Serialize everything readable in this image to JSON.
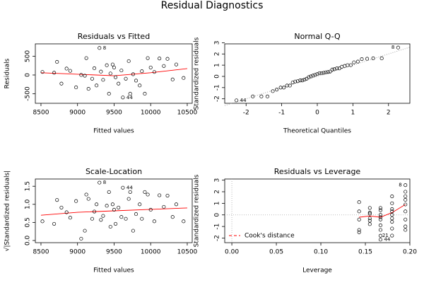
{
  "title": "Residual Diagnostics",
  "chart_data": [
    {
      "type": "scatter",
      "title": "Residuals vs Fitted",
      "x_label": "Fitted values",
      "y_label": "Residuals",
      "color": "#000000",
      "x": [
        8520,
        8680,
        8720,
        8780,
        8850,
        8900,
        8980,
        9050,
        9100,
        9120,
        9150,
        9200,
        9230,
        9260,
        9300,
        9320,
        9350,
        9400,
        9430,
        9450,
        9480,
        9500,
        9520,
        9560,
        9600,
        9620,
        9660,
        9700,
        9720,
        9760,
        9800,
        9850,
        9880,
        9920,
        9960,
        10000,
        10050,
        10120,
        10180,
        10230,
        10300,
        10350,
        10450
      ],
      "values": [
        80,
        60,
        350,
        -230,
        170,
        110,
        -330,
        0,
        -20,
        450,
        -370,
        -100,
        180,
        -280,
        720,
        90,
        -130,
        260,
        -500,
        40,
        280,
        200,
        -60,
        -230,
        120,
        -600,
        -100,
        370,
        -500,
        20,
        -150,
        -280,
        100,
        -500,
        450,
        200,
        80,
        440,
        240,
        430,
        -120,
        280,
        -80
      ],
      "xlim": [
        8423,
        10568
      ],
      "ylim": [
        -755,
        830
      ],
      "xticks": [
        8500,
        9000,
        9500,
        10000,
        10500
      ],
      "yticks": [
        -500,
        0,
        500
      ],
      "lines": [
        {
          "color": "#ff0000",
          "dash": "solid",
          "x": [
            8500,
            9000,
            9500,
            10000,
            10500
          ],
          "values": [
            60,
            20,
            -20,
            60,
            170
          ]
        }
      ],
      "annotations": [
        {
          "text": "8",
          "x": 9300,
          "y": 720
        },
        {
          "text": "44",
          "x": 9620,
          "y": -600
        }
      ]
    },
    {
      "type": "scatter",
      "title": "Normal Q-Q",
      "x_label": "Theoretical Quantiles",
      "y_label": "Standardized residuals",
      "color": "#000000",
      "x": [
        -2.27,
        -1.81,
        -1.57,
        -1.4,
        -1.25,
        -1.14,
        -1.03,
        -0.94,
        -0.85,
        -0.77,
        -0.69,
        -0.62,
        -0.55,
        -0.48,
        -0.42,
        -0.36,
        -0.3,
        -0.24,
        -0.18,
        -0.12,
        -0.06,
        0,
        0.06,
        0.12,
        0.18,
        0.24,
        0.3,
        0.36,
        0.42,
        0.48,
        0.55,
        0.62,
        0.69,
        0.77,
        0.85,
        0.94,
        1.03,
        1.14,
        1.25,
        1.4,
        1.57,
        1.81,
        2.27
      ],
      "values": [
        -2.14,
        -1.79,
        -1.79,
        -1.79,
        -1.32,
        -1.18,
        -1.0,
        -1.0,
        -0.82,
        -0.82,
        -0.54,
        -0.46,
        -0.43,
        -0.36,
        -0.36,
        -0.29,
        -0.21,
        -0.07,
        0,
        0.07,
        0.14,
        0.21,
        0.29,
        0.29,
        0.32,
        0.36,
        0.39,
        0.43,
        0.61,
        0.64,
        0.71,
        0.71,
        0.86,
        0.93,
        1.0,
        1.0,
        1.25,
        1.32,
        1.54,
        1.57,
        1.61,
        1.61,
        2.57
      ],
      "xlim": [
        -2.6,
        2.6
      ],
      "ylim": [
        -2.4,
        2.9
      ],
      "xticks": [
        -2,
        -1,
        0,
        1,
        2
      ],
      "yticks": [
        -2,
        -1,
        0,
        1,
        2,
        3
      ],
      "lines": [
        {
          "color": "#999999",
          "dash": "dotted",
          "x": [
            -2.6,
            2.6
          ],
          "values": [
            -2.6,
            2.6
          ]
        }
      ],
      "annotations": [
        {
          "text": "8",
          "x": 2.27,
          "y": 2.57
        },
        {
          "text": "44",
          "x": -2.27,
          "y": -2.14
        }
      ]
    },
    {
      "type": "scatter",
      "title": "Scale-Location",
      "x_label": "Fitted values",
      "y_label": "√|Standardized residuals|",
      "color": "#000000",
      "x": [
        8520,
        8680,
        8720,
        8780,
        8850,
        8900,
        8980,
        9050,
        9100,
        9120,
        9150,
        9200,
        9230,
        9260,
        9300,
        9320,
        9350,
        9400,
        9430,
        9450,
        9480,
        9500,
        9520,
        9560,
        9600,
        9620,
        9660,
        9700,
        9720,
        9760,
        9800,
        9850,
        9880,
        9920,
        9960,
        10000,
        10050,
        10120,
        10180,
        10230,
        10300,
        10350,
        10450
      ],
      "values": [
        0.53,
        0.46,
        1.12,
        0.91,
        0.78,
        0.63,
        1.09,
        0.05,
        0.27,
        1.27,
        1.15,
        0.6,
        0.8,
        1.0,
        1.6,
        0.57,
        0.68,
        0.96,
        1.34,
        0.38,
        1.0,
        0.85,
        0.46,
        0.91,
        0.65,
        1.46,
        0.6,
        1.15,
        1.34,
        0.27,
        0.73,
        1.0,
        0.6,
        1.34,
        1.27,
        0.85,
        0.53,
        1.25,
        0.93,
        1.24,
        0.65,
        1.0,
        0.53
      ],
      "xlim": [
        8423,
        10568
      ],
      "ylim": [
        -0.06,
        1.7
      ],
      "xticks": [
        8500,
        9000,
        9500,
        10000,
        10500
      ],
      "yticks": [
        {
          "value": 0,
          "label": "0.0"
        },
        0.5,
        {
          "value": 1,
          "label": "1.0"
        },
        1.5
      ],
      "lines": [
        {
          "color": "#ff0000",
          "dash": "solid",
          "x": [
            8500,
            9000,
            9500,
            10000,
            10500
          ],
          "values": [
            0.7,
            0.78,
            0.82,
            0.86,
            0.9
          ]
        }
      ],
      "annotations": [
        {
          "text": "8",
          "x": 9300,
          "y": 1.6
        },
        {
          "text": "44",
          "x": 9620,
          "y": 1.46
        }
      ]
    },
    {
      "type": "scatter",
      "title": "Residuals vs Leverage",
      "x_label": "Leverage",
      "y_label": "Standardized residuals",
      "color": "#000000",
      "x": [
        0.143,
        0.143,
        0.143,
        0.143,
        0.143,
        0.155,
        0.155,
        0.155,
        0.155,
        0.155,
        0.155,
        0.167,
        0.167,
        0.167,
        0.167,
        0.167,
        0.167,
        0.167,
        0.167,
        0.167,
        0.18,
        0.18,
        0.18,
        0.18,
        0.18,
        0.18,
        0.18,
        0.18,
        0.18,
        0.195,
        0.195,
        0.195,
        0.195,
        0.195,
        0.195,
        0.195,
        0.195,
        0.195
      ],
      "values": [
        -1.5,
        -1.3,
        0.3,
        1.1,
        -0.4,
        -0.8,
        -0.5,
        0.1,
        0.6,
        0.2,
        -0.3,
        -2.14,
        -1.8,
        -1.3,
        -0.9,
        -0.4,
        0,
        0.4,
        0.6,
        -0.2,
        -1.79,
        -1.18,
        -0.6,
        0,
        0.5,
        1.0,
        1.6,
        -0.3,
        0.3,
        -1.0,
        -0.4,
        0.3,
        0.9,
        1.3,
        1.61,
        2.0,
        2.57,
        -1.3
      ],
      "xlim": [
        -0.008,
        0.2
      ],
      "ylim": [
        -2.4,
        3.1
      ],
      "xticks": [
        {
          "value": 0,
          "label": "0.00"
        },
        0.05,
        {
          "value": 0.1,
          "label": "0.10"
        },
        0.15,
        {
          "value": 0.2,
          "label": "0.20"
        }
      ],
      "yticks": [
        -2,
        -1,
        0,
        1,
        2,
        3
      ],
      "lines": [
        {
          "color": "#ff0000",
          "dash": "solid",
          "x": [
            0.143,
            0.155,
            0.167,
            0.18,
            0.195
          ],
          "values": [
            -0.2,
            -0.1,
            -0.2,
            0.2,
            0.9
          ]
        }
      ],
      "legend": {
        "label": "Cook's distance",
        "color": "#ff0000",
        "corner": "bottom-left"
      },
      "annotations": [
        {
          "text": "8",
          "x": 0.195,
          "y": 2.57
        },
        {
          "text": "44",
          "x": 0.167,
          "y": -2.14
        },
        {
          "text": "21",
          "x": 0.18,
          "y": -1.79
        }
      ]
    }
  ]
}
